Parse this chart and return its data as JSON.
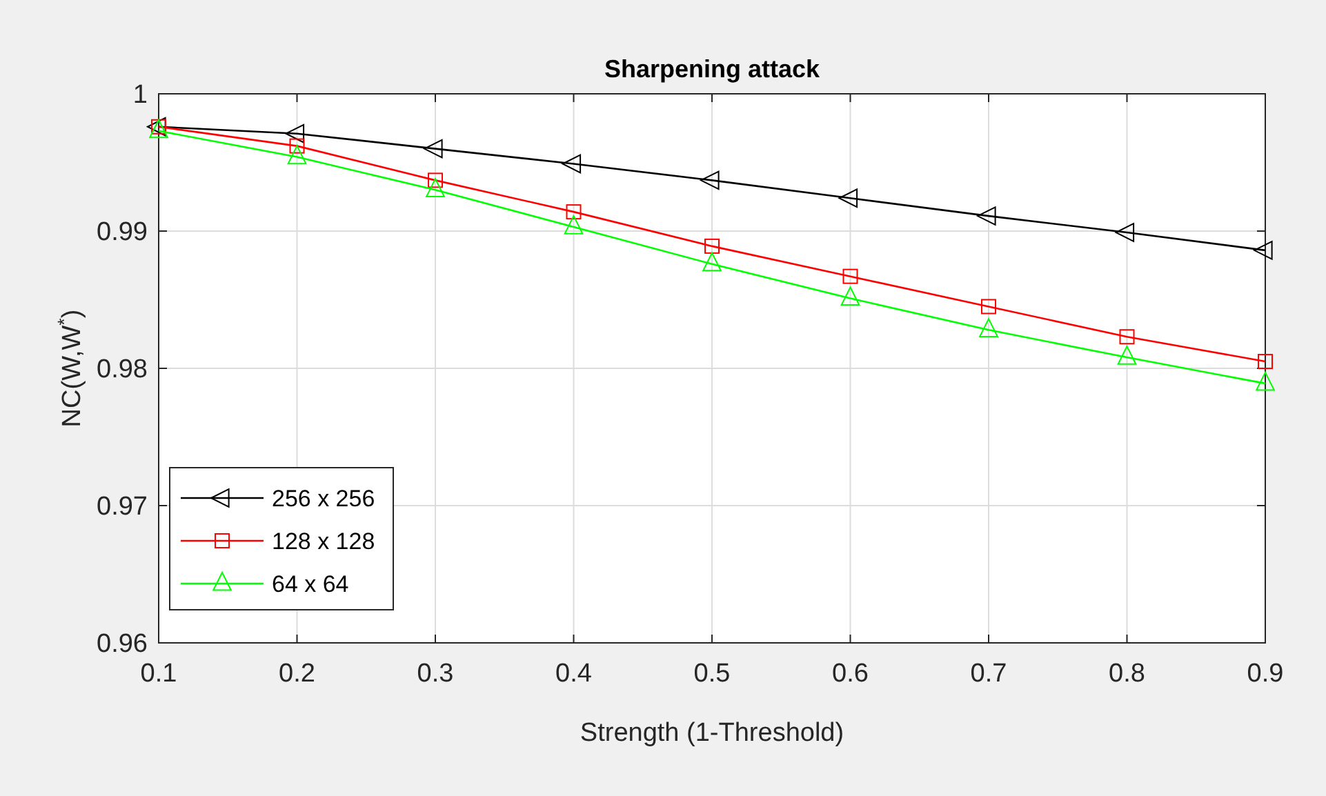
{
  "chart_data": {
    "type": "line",
    "title": "Sharpening attack",
    "xlabel": "Strength (1-Threshold)",
    "ylabel": "NC(W,W$^{*}$)",
    "x": [
      0.1,
      0.2,
      0.3,
      0.4,
      0.5,
      0.6,
      0.7,
      0.8,
      0.9
    ],
    "series": [
      {
        "name": "256 x 256",
        "color": "#000000",
        "marker": "triangle-left",
        "values": [
          0.9976,
          0.9971,
          0.996,
          0.9949,
          0.9937,
          0.9924,
          0.9911,
          0.9899,
          0.9886
        ]
      },
      {
        "name": "128 x 128",
        "color": "#ff0000",
        "marker": "square",
        "values": [
          0.9976,
          0.9962,
          0.9937,
          0.9914,
          0.9889,
          0.9867,
          0.9845,
          0.9823,
          0.9805
        ]
      },
      {
        "name": "64 x 64",
        "color": "#00ff00",
        "marker": "triangle",
        "values": [
          0.9973,
          0.9954,
          0.993,
          0.9903,
          0.9876,
          0.9851,
          0.9828,
          0.9808,
          0.9789
        ]
      }
    ],
    "xlim": [
      0.1,
      0.9
    ],
    "xticks": [
      0.1,
      0.2,
      0.3,
      0.4,
      0.5,
      0.6,
      0.7,
      0.8,
      0.9
    ],
    "ylim": [
      0.96,
      1
    ],
    "yticks": [
      0.96,
      0.97,
      0.98,
      0.99,
      1
    ],
    "grid": true,
    "legend": "bottom left",
    "line_style": "solid"
  }
}
